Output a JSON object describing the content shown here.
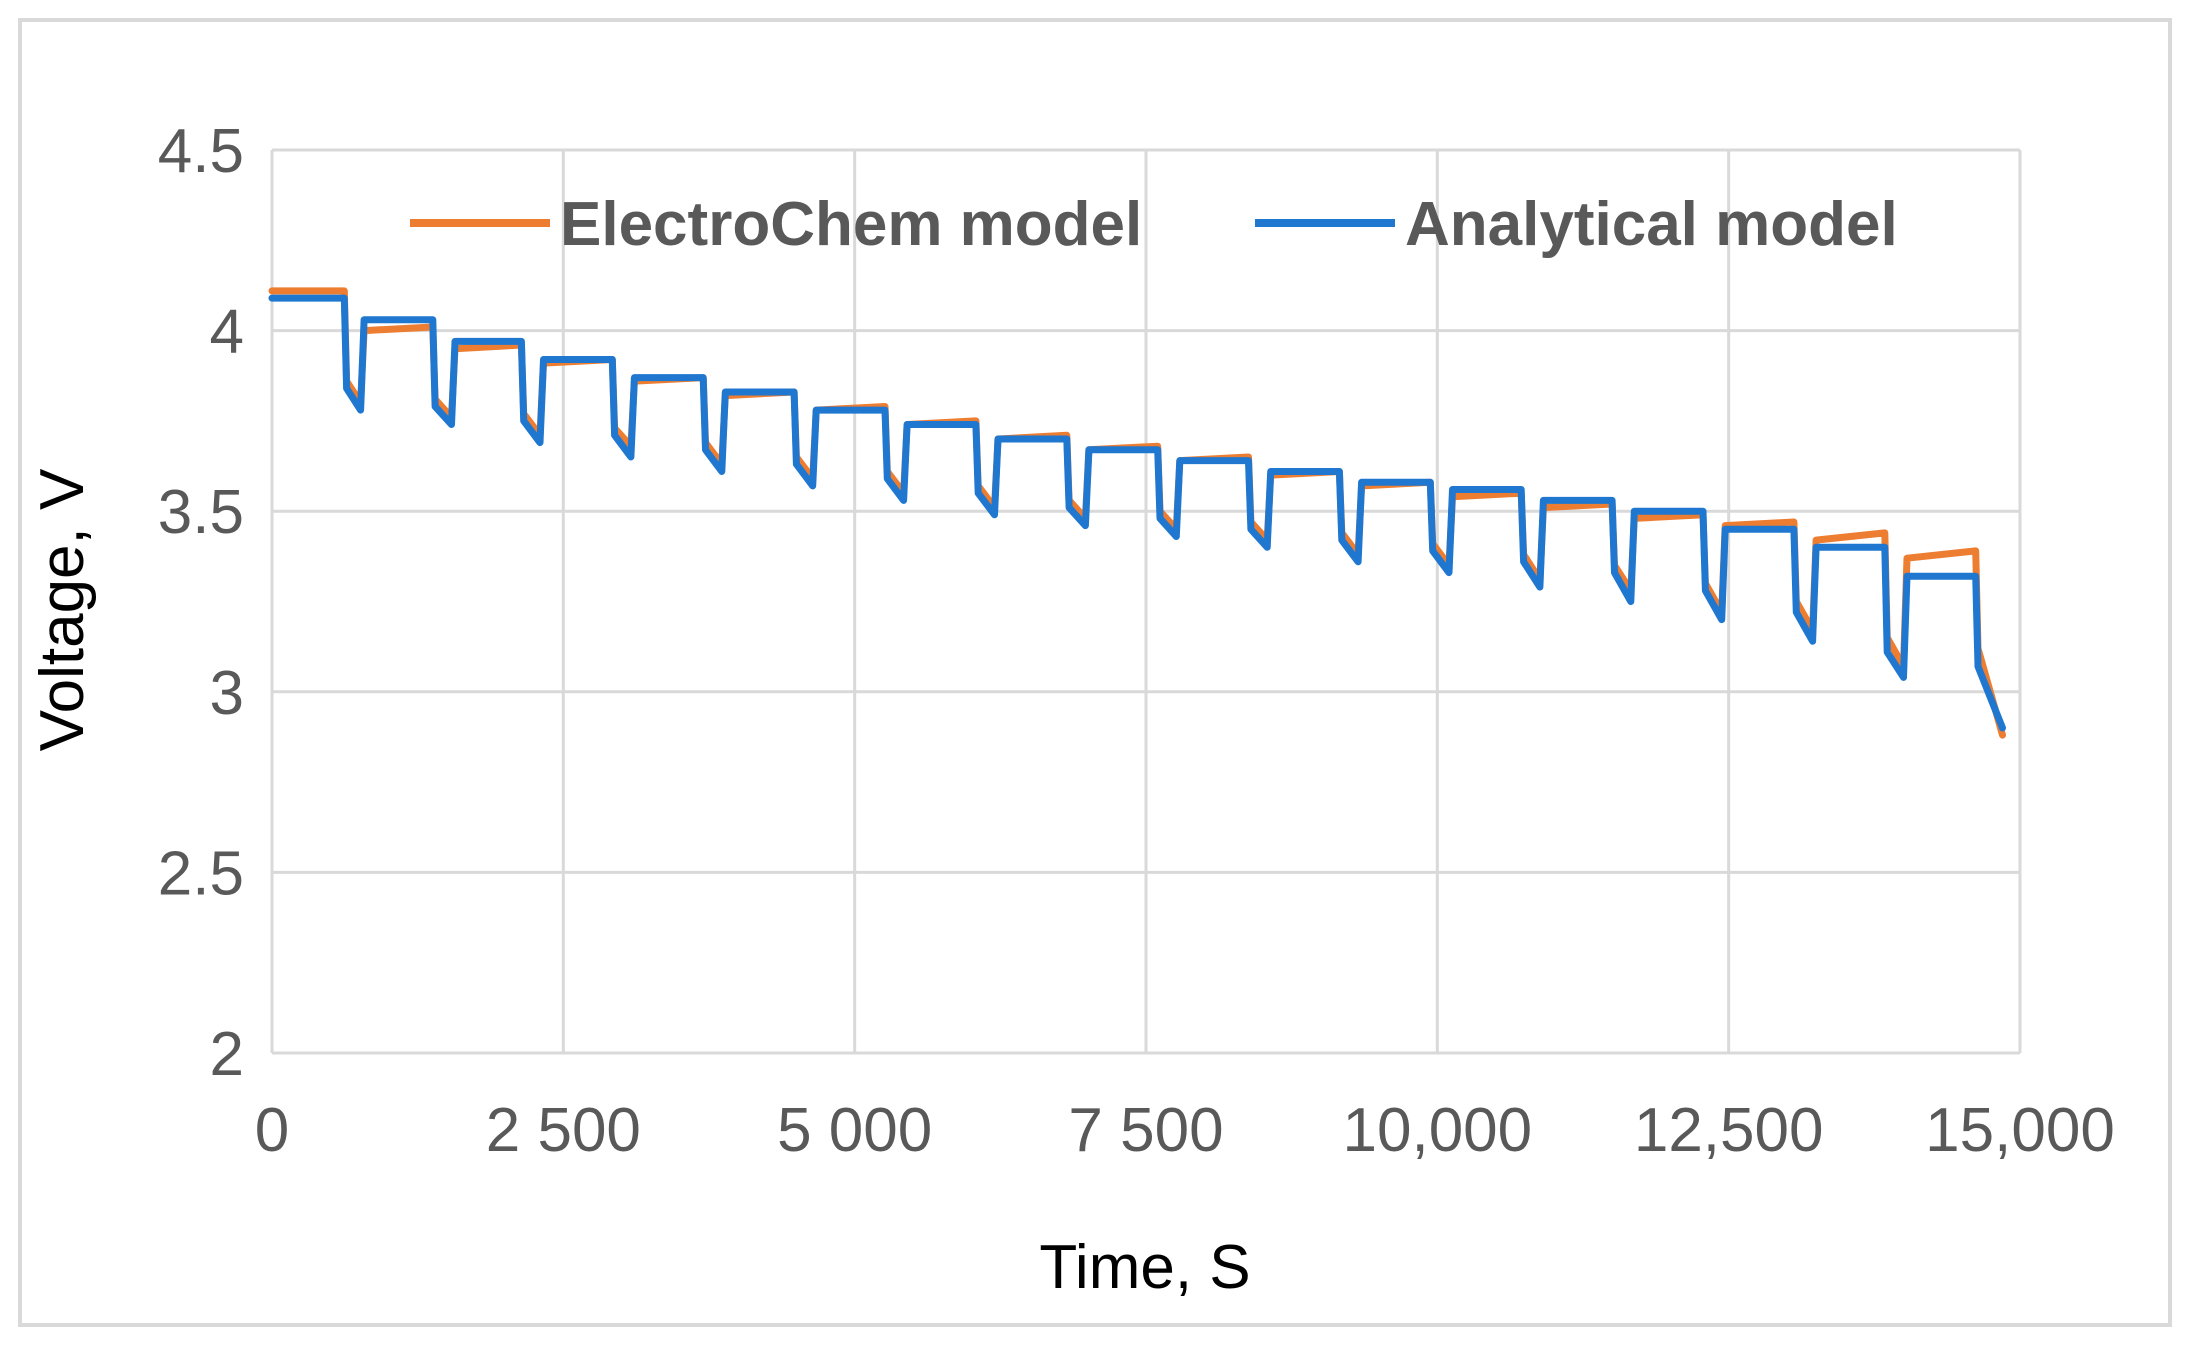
{
  "chart_data": {
    "type": "line",
    "title": "",
    "xlabel": "Time, S",
    "ylabel": "Voltage, V",
    "xlim": [
      0,
      15000
    ],
    "ylim": [
      2,
      4.5
    ],
    "x_ticks": [
      0,
      2500,
      5000,
      7500,
      10000,
      12500,
      15000
    ],
    "x_tick_labels": [
      "0",
      "2 500",
      "5 000",
      "7 500",
      "10,000",
      "12,500",
      "15,000"
    ],
    "y_ticks": [
      2,
      2.5,
      3,
      3.5,
      4,
      4.5
    ],
    "y_tick_labels": [
      "2",
      "2.5",
      "3",
      "3.5",
      "4",
      "4.5"
    ],
    "grid": true,
    "legend_position": "top",
    "series": [
      {
        "name": "ElectroChem model",
        "color": "#ED7D31",
        "x": [
          0,
          620,
          640,
          760,
          790,
          1380,
          1400,
          1540,
          1570,
          2140,
          2160,
          2300,
          2330,
          2920,
          2940,
          3080,
          3110,
          3700,
          3720,
          3860,
          3890,
          4480,
          4500,
          4640,
          4670,
          5260,
          5280,
          5420,
          5450,
          6040,
          6060,
          6200,
          6230,
          6820,
          6840,
          6980,
          7010,
          7600,
          7620,
          7760,
          7790,
          8380,
          8400,
          8540,
          8570,
          9160,
          9180,
          9320,
          9350,
          9940,
          9960,
          10100,
          10130,
          10720,
          10740,
          10880,
          10910,
          11500,
          11520,
          11660,
          11690,
          12280,
          12300,
          12440,
          12470,
          13060,
          13080,
          13220,
          13250,
          13840,
          13860,
          14000,
          14030,
          14620,
          14640,
          14850
        ],
        "values": [
          4.11,
          4.11,
          3.86,
          3.8,
          4.0,
          4.01,
          3.81,
          3.76,
          3.95,
          3.96,
          3.77,
          3.71,
          3.91,
          3.92,
          3.73,
          3.68,
          3.86,
          3.87,
          3.69,
          3.63,
          3.82,
          3.83,
          3.65,
          3.59,
          3.78,
          3.79,
          3.61,
          3.55,
          3.74,
          3.75,
          3.57,
          3.51,
          3.7,
          3.71,
          3.53,
          3.48,
          3.67,
          3.68,
          3.5,
          3.45,
          3.64,
          3.65,
          3.47,
          3.42,
          3.6,
          3.61,
          3.44,
          3.38,
          3.57,
          3.58,
          3.41,
          3.35,
          3.54,
          3.55,
          3.38,
          3.31,
          3.51,
          3.52,
          3.35,
          3.28,
          3.48,
          3.49,
          3.3,
          3.22,
          3.46,
          3.47,
          3.25,
          3.17,
          3.42,
          3.44,
          3.15,
          3.07,
          3.37,
          3.39,
          3.12,
          2.88
        ]
      },
      {
        "name": "Analytical model",
        "color": "#1F77D0",
        "x": [
          0,
          620,
          640,
          760,
          790,
          1380,
          1400,
          1540,
          1570,
          2140,
          2160,
          2300,
          2330,
          2920,
          2940,
          3080,
          3110,
          3700,
          3720,
          3860,
          3890,
          4480,
          4500,
          4640,
          4670,
          5260,
          5280,
          5420,
          5450,
          6040,
          6060,
          6200,
          6230,
          6820,
          6840,
          6980,
          7010,
          7600,
          7620,
          7760,
          7790,
          8380,
          8400,
          8540,
          8570,
          9160,
          9180,
          9320,
          9350,
          9940,
          9960,
          10100,
          10130,
          10720,
          10740,
          10880,
          10910,
          11500,
          11520,
          11660,
          11690,
          12280,
          12300,
          12440,
          12470,
          13060,
          13080,
          13220,
          13250,
          13840,
          13860,
          14000,
          14030,
          14620,
          14640,
          14850
        ],
        "values": [
          4.09,
          4.09,
          3.84,
          3.78,
          4.03,
          4.03,
          3.79,
          3.74,
          3.97,
          3.97,
          3.75,
          3.69,
          3.92,
          3.92,
          3.71,
          3.65,
          3.87,
          3.87,
          3.67,
          3.61,
          3.83,
          3.83,
          3.63,
          3.57,
          3.78,
          3.78,
          3.59,
          3.53,
          3.74,
          3.74,
          3.55,
          3.49,
          3.7,
          3.7,
          3.51,
          3.46,
          3.67,
          3.67,
          3.48,
          3.43,
          3.64,
          3.64,
          3.45,
          3.4,
          3.61,
          3.61,
          3.42,
          3.36,
          3.58,
          3.58,
          3.39,
          3.33,
          3.56,
          3.56,
          3.36,
          3.29,
          3.53,
          3.53,
          3.33,
          3.25,
          3.5,
          3.5,
          3.28,
          3.2,
          3.45,
          3.45,
          3.22,
          3.14,
          3.4,
          3.4,
          3.11,
          3.04,
          3.32,
          3.32,
          3.07,
          2.9
        ]
      }
    ]
  }
}
